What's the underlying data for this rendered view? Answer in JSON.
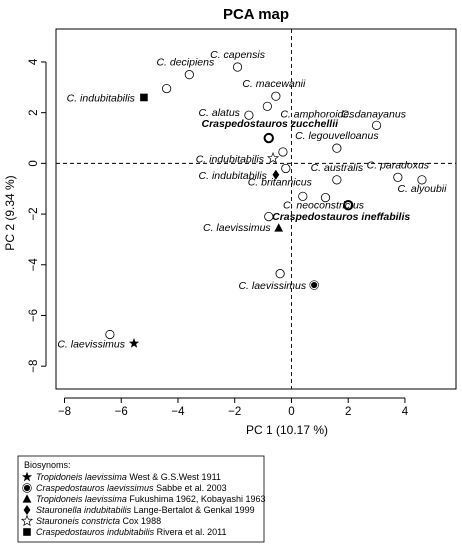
{
  "chart_data": {
    "type": "scatter",
    "title": "PCA map",
    "xlabel": "PC 1 (10.17 %)",
    "ylabel": "PC 2 (9.34 %)",
    "xlim": [
      -8.3,
      5.8
    ],
    "ylim": [
      -8.9,
      5.3
    ],
    "xticks": [
      -8,
      -6,
      -4,
      -2,
      0,
      2,
      4
    ],
    "yticks": [
      -8,
      -6,
      -4,
      -2,
      0,
      2,
      4
    ],
    "reference_lines": {
      "x": 0,
      "y": 0,
      "style": "dashed"
    },
    "grid": false,
    "points": [
      {
        "x": -1.9,
        "y": 3.8,
        "marker": "circle",
        "label": "C. capensis",
        "bold": false
      },
      {
        "x": -3.6,
        "y": 3.5,
        "marker": "circle",
        "label": "C. decipiens",
        "bold": false
      },
      {
        "x": -4.4,
        "y": 2.95,
        "marker": "circle",
        "label": "",
        "bold": false
      },
      {
        "x": -5.2,
        "y": 2.6,
        "marker": "square",
        "label": "C. indubitabilis",
        "bold": false
      },
      {
        "x": -0.55,
        "y": 2.65,
        "marker": "circle",
        "label": "C. macewanii",
        "bold": false
      },
      {
        "x": -0.85,
        "y": 2.25,
        "marker": "circle",
        "label": "C. amphoroides",
        "bold": false
      },
      {
        "x": -1.5,
        "y": 1.9,
        "marker": "circle",
        "label": "C. alatus",
        "bold": false
      },
      {
        "x": 3.0,
        "y": 1.5,
        "marker": "circle",
        "label": "C. danayanus",
        "bold": false
      },
      {
        "x": -0.8,
        "y": 1.0,
        "marker": "circle-bold",
        "label": "Craspedostauros zucchellii",
        "bold": true
      },
      {
        "x": 1.6,
        "y": 0.6,
        "marker": "circle",
        "label": "C. legouvelloanus",
        "bold": false
      },
      {
        "x": -0.3,
        "y": 0.45,
        "marker": "circle",
        "label": "",
        "bold": false
      },
      {
        "x": -0.65,
        "y": 0.2,
        "marker": "star-open",
        "label": "C. indubitabilis",
        "bold": false
      },
      {
        "x": -0.2,
        "y": -0.2,
        "marker": "circle",
        "label": "",
        "bold": false
      },
      {
        "x": -0.55,
        "y": -0.45,
        "marker": "diamond",
        "label": "C. indubitabilis",
        "bold": false
      },
      {
        "x": 1.6,
        "y": -0.65,
        "marker": "circle",
        "label": "C. australis",
        "bold": false
      },
      {
        "x": 3.75,
        "y": -0.55,
        "marker": "circle",
        "label": "C. paradoxus",
        "bold": false
      },
      {
        "x": 4.6,
        "y": -0.65,
        "marker": "circle",
        "label": "C. alyoubii",
        "bold": false
      },
      {
        "x": 0.4,
        "y": -1.3,
        "marker": "circle",
        "label": "C. britannicus",
        "bold": false
      },
      {
        "x": 1.2,
        "y": -1.35,
        "marker": "circle",
        "label": "C. neoconstrictus",
        "bold": false
      },
      {
        "x": 2.0,
        "y": -1.65,
        "marker": "circle-bold",
        "label": "Craspedostauros ineffabilis",
        "bold": true
      },
      {
        "x": -0.8,
        "y": -2.1,
        "marker": "circle",
        "label": "",
        "bold": false
      },
      {
        "x": -0.45,
        "y": -2.55,
        "marker": "triangle",
        "label": "C. laevissimus",
        "bold": false
      },
      {
        "x": -0.4,
        "y": -4.35,
        "marker": "circle",
        "label": "",
        "bold": false
      },
      {
        "x": 0.8,
        "y": -4.8,
        "marker": "sun",
        "label": "C. laevissimus",
        "bold": false
      },
      {
        "x": -6.4,
        "y": -6.75,
        "marker": "circle",
        "label": "",
        "bold": false
      },
      {
        "x": -5.55,
        "y": -7.1,
        "marker": "star-filled",
        "label": "C. laevissimus",
        "bold": false
      }
    ]
  },
  "legend": {
    "title": "Biosynoms:",
    "entries": [
      {
        "marker": "star-filled",
        "name": "Tropidoneis laevissima",
        "authority": "West & G.S.West 1911"
      },
      {
        "marker": "sun",
        "name": "Craspedostauros laevissimus",
        "authority": "Sabbe et al. 2003"
      },
      {
        "marker": "triangle",
        "name": "Tropidoneis laevissima",
        "authority": "Fukushima 1962, Kobayashi 1963"
      },
      {
        "marker": "diamond",
        "name": "Stauronella indubitabilis",
        "authority": "Lange-Bertalot & Genkal 1999"
      },
      {
        "marker": "star-open",
        "name": "Stauroneis constricta",
        "authority": "Cox 1988"
      },
      {
        "marker": "square",
        "name": "Craspedostauros indubitabilis",
        "authority": "Rivera et al. 2011"
      }
    ]
  }
}
